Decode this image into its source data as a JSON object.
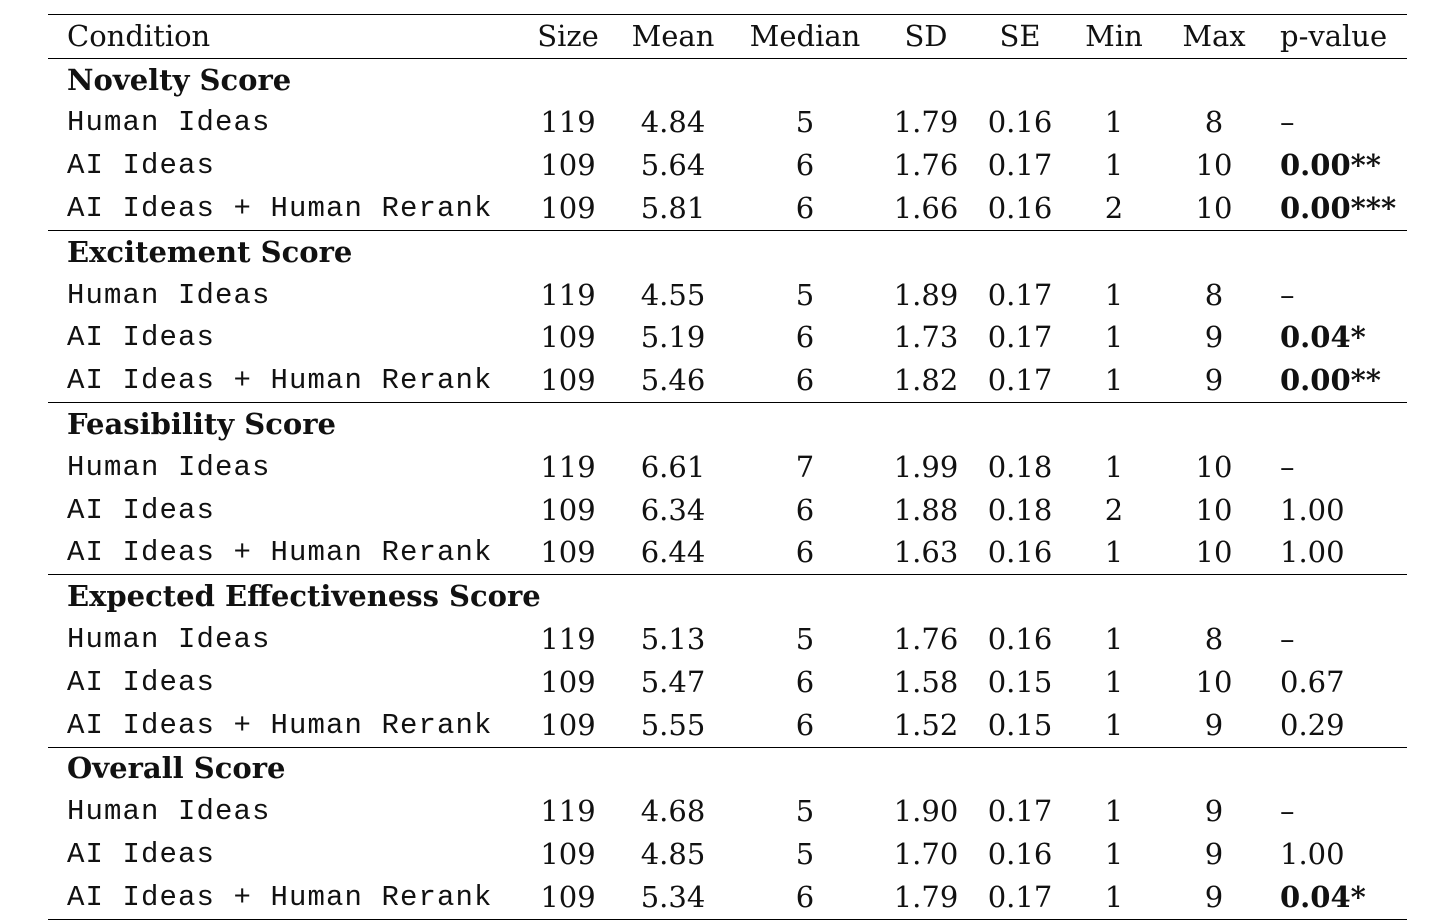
{
  "columns": [
    "Condition",
    "Size",
    "Mean",
    "Median",
    "SD",
    "SE",
    "Min",
    "Max",
    "p-value"
  ],
  "sections": [
    {
      "title": "Novelty Score",
      "rows": [
        {
          "condition": "Human Ideas",
          "size": "119",
          "mean": "4.84",
          "median": "5",
          "sd": "1.79",
          "se": "0.16",
          "min": "1",
          "max": "8",
          "p": "–",
          "sig": false
        },
        {
          "condition": "AI Ideas",
          "size": "109",
          "mean": "5.64",
          "median": "6",
          "sd": "1.76",
          "se": "0.17",
          "min": "1",
          "max": "10",
          "p": "0.00**",
          "sig": true
        },
        {
          "condition": "AI Ideas + Human Rerank",
          "size": "109",
          "mean": "5.81",
          "median": "6",
          "sd": "1.66",
          "se": "0.16",
          "min": "2",
          "max": "10",
          "p": "0.00***",
          "sig": true
        }
      ]
    },
    {
      "title": "Excitement Score",
      "rows": [
        {
          "condition": "Human Ideas",
          "size": "119",
          "mean": "4.55",
          "median": "5",
          "sd": "1.89",
          "se": "0.17",
          "min": "1",
          "max": "8",
          "p": "–",
          "sig": false
        },
        {
          "condition": "AI Ideas",
          "size": "109",
          "mean": "5.19",
          "median": "6",
          "sd": "1.73",
          "se": "0.17",
          "min": "1",
          "max": "9",
          "p": "0.04*",
          "sig": true
        },
        {
          "condition": "AI Ideas + Human Rerank",
          "size": "109",
          "mean": "5.46",
          "median": "6",
          "sd": "1.82",
          "se": "0.17",
          "min": "1",
          "max": "9",
          "p": "0.00**",
          "sig": true
        }
      ]
    },
    {
      "title": "Feasibility Score",
      "rows": [
        {
          "condition": "Human Ideas",
          "size": "119",
          "mean": "6.61",
          "median": "7",
          "sd": "1.99",
          "se": "0.18",
          "min": "1",
          "max": "10",
          "p": "–",
          "sig": false
        },
        {
          "condition": "AI Ideas",
          "size": "109",
          "mean": "6.34",
          "median": "6",
          "sd": "1.88",
          "se": "0.18",
          "min": "2",
          "max": "10",
          "p": "1.00",
          "sig": false
        },
        {
          "condition": "AI Ideas + Human Rerank",
          "size": "109",
          "mean": "6.44",
          "median": "6",
          "sd": "1.63",
          "se": "0.16",
          "min": "1",
          "max": "10",
          "p": "1.00",
          "sig": false
        }
      ]
    },
    {
      "title": "Expected Effectiveness Score",
      "rows": [
        {
          "condition": "Human Ideas",
          "size": "119",
          "mean": "5.13",
          "median": "5",
          "sd": "1.76",
          "se": "0.16",
          "min": "1",
          "max": "8",
          "p": "–",
          "sig": false
        },
        {
          "condition": "AI Ideas",
          "size": "109",
          "mean": "5.47",
          "median": "6",
          "sd": "1.58",
          "se": "0.15",
          "min": "1",
          "max": "10",
          "p": "0.67",
          "sig": false
        },
        {
          "condition": "AI Ideas + Human Rerank",
          "size": "109",
          "mean": "5.55",
          "median": "6",
          "sd": "1.52",
          "se": "0.15",
          "min": "1",
          "max": "9",
          "p": "0.29",
          "sig": false
        }
      ]
    },
    {
      "title": "Overall Score",
      "rows": [
        {
          "condition": "Human Ideas",
          "size": "119",
          "mean": "4.68",
          "median": "5",
          "sd": "1.90",
          "se": "0.17",
          "min": "1",
          "max": "9",
          "p": "–",
          "sig": false
        },
        {
          "condition": "AI Ideas",
          "size": "109",
          "mean": "4.85",
          "median": "5",
          "sd": "1.70",
          "se": "0.16",
          "min": "1",
          "max": "9",
          "p": "1.00",
          "sig": false
        },
        {
          "condition": "AI Ideas + Human Rerank",
          "size": "109",
          "mean": "5.34",
          "median": "6",
          "sd": "1.79",
          "se": "0.17",
          "min": "1",
          "max": "9",
          "p": "0.04*",
          "sig": true
        }
      ]
    }
  ]
}
